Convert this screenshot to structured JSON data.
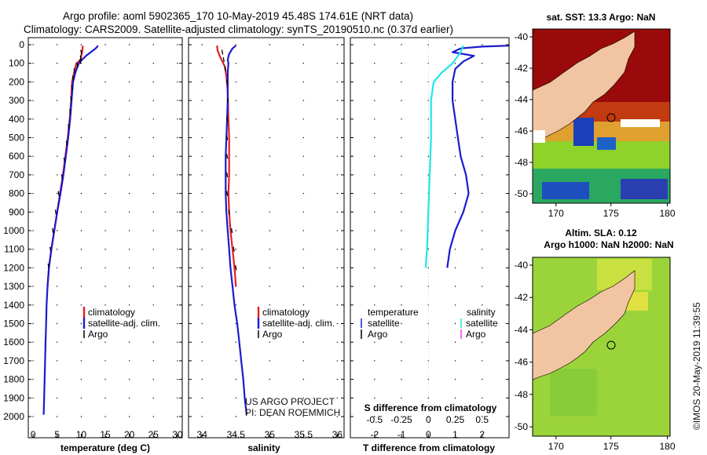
{
  "title": {
    "line1": "Argo profile: aoml 5902365_170 10-May-2019 45.48S 174.61E (NRT data)",
    "line2": "Climatology: CARS2009. Satellite-adjusted climatology: synTS_20190510.nc (0.37d earlier)"
  },
  "depth_ticks": [
    "0",
    "100",
    "200",
    "300",
    "400",
    "500",
    "600",
    "700",
    "800",
    "900",
    "1000",
    "1100",
    "1200",
    "1300",
    "1400",
    "1500",
    "1600",
    "1700",
    "1800",
    "1900",
    "2000"
  ],
  "colors": {
    "climatology": "#e02020",
    "satellite": "#1a1ad0",
    "argo": "#000000",
    "sat_salinity": "#22e6e6",
    "argo_salinity": "#ff33ff"
  },
  "chart_data": [
    {
      "type": "line",
      "id": "temperature",
      "xlabel": "temperature (deg C)",
      "ylabel": "depth (m)",
      "xlim": [
        -1,
        31
      ],
      "ylim": [
        2050,
        0
      ],
      "xticks": [
        0,
        5,
        10,
        15,
        20,
        25,
        30
      ],
      "xtick_labels": [
        "0",
        "5",
        "10",
        "15",
        "20",
        "25",
        "30"
      ],
      "legend": [
        "climatology",
        "satellite-adj. clim.",
        "Argo"
      ],
      "series": [
        {
          "name": "climatology",
          "color": "#e02020",
          "points": [
            [
              10.3,
              5
            ],
            [
              10.3,
              20
            ],
            [
              10.2,
              40
            ],
            [
              10.0,
              60
            ],
            [
              9.9,
              80
            ],
            [
              9.0,
              100
            ],
            [
              8.5,
              150
            ],
            [
              8.1,
              200
            ],
            [
              7.9,
              300
            ],
            [
              7.6,
              400
            ],
            [
              7.2,
              500
            ],
            [
              6.7,
              600
            ],
            [
              6.2,
              700
            ],
            [
              5.6,
              800
            ],
            [
              5.0,
              900
            ],
            [
              4.4,
              1000
            ],
            [
              3.8,
              1100
            ],
            [
              3.3,
              1200
            ],
            [
              3.0,
              1300
            ]
          ]
        },
        {
          "name": "satellite-adj. clim.",
          "color": "#1a1ad0",
          "points": [
            [
              13.5,
              5
            ],
            [
              13.0,
              20
            ],
            [
              12.0,
              40
            ],
            [
              11.0,
              60
            ],
            [
              10.2,
              80
            ],
            [
              9.5,
              100
            ],
            [
              8.8,
              150
            ],
            [
              8.3,
              200
            ],
            [
              8.0,
              300
            ],
            [
              7.7,
              400
            ],
            [
              7.3,
              500
            ],
            [
              6.8,
              600
            ],
            [
              6.3,
              700
            ],
            [
              5.7,
              800
            ],
            [
              5.0,
              900
            ],
            [
              4.4,
              1000
            ],
            [
              3.8,
              1100
            ],
            [
              3.3,
              1200
            ],
            [
              3.0,
              1300
            ],
            [
              2.8,
              1400
            ],
            [
              2.7,
              1500
            ],
            [
              2.6,
              1600
            ],
            [
              2.5,
              1700
            ],
            [
              2.4,
              1800
            ],
            [
              2.3,
              1900
            ],
            [
              2.2,
              1990
            ]
          ]
        },
        {
          "name": "Argo",
          "color": "#000000",
          "points": [
            [
              10.0,
              40
            ],
            [
              9.9,
              70
            ],
            [
              9.8,
              90
            ],
            [
              9.2,
              110
            ],
            [
              8.6,
              140
            ],
            [
              8.3,
              180
            ],
            [
              8.1,
              230
            ],
            [
              7.9,
              290
            ],
            [
              7.7,
              360
            ],
            [
              7.4,
              440
            ],
            [
              7.0,
              530
            ],
            [
              6.5,
              620
            ],
            [
              6.0,
              710
            ],
            [
              5.3,
              800
            ],
            [
              4.7,
              900
            ],
            [
              4.1,
              1000
            ],
            [
              3.6,
              1100
            ],
            [
              3.2,
              1190
            ]
          ]
        }
      ]
    },
    {
      "type": "line",
      "id": "salinity",
      "xlabel": "salinity",
      "ylabel": "depth (m)",
      "xlim": [
        33.8,
        36.1
      ],
      "ylim": [
        2050,
        0
      ],
      "xticks": [
        34,
        34.5,
        35,
        35.5,
        36
      ],
      "xtick_labels": [
        "34",
        "34.5",
        "35",
        "35.5",
        "36"
      ],
      "legend": [
        "climatology",
        "satellite-adj. clim.",
        "Argo"
      ],
      "series": [
        {
          "name": "climatology",
          "color": "#e02020",
          "points": [
            [
              34.22,
              5
            ],
            [
              34.23,
              30
            ],
            [
              34.26,
              60
            ],
            [
              34.3,
              90
            ],
            [
              34.34,
              120
            ],
            [
              34.36,
              170
            ],
            [
              34.38,
              250
            ],
            [
              34.39,
              400
            ],
            [
              34.4,
              500
            ],
            [
              34.4,
              600
            ],
            [
              34.4,
              700
            ],
            [
              34.39,
              800
            ],
            [
              34.4,
              900
            ],
            [
              34.42,
              1000
            ],
            [
              34.45,
              1100
            ],
            [
              34.48,
              1200
            ],
            [
              34.5,
              1300
            ]
          ]
        },
        {
          "name": "satellite-adj. clim.",
          "color": "#1a1ad0",
          "points": [
            [
              34.5,
              5
            ],
            [
              34.45,
              20
            ],
            [
              34.4,
              50
            ],
            [
              34.38,
              80
            ],
            [
              34.39,
              100
            ],
            [
              34.38,
              150
            ],
            [
              34.38,
              200
            ],
            [
              34.38,
              300
            ],
            [
              34.37,
              400
            ],
            [
              34.36,
              500
            ],
            [
              34.35,
              600
            ],
            [
              34.35,
              700
            ],
            [
              34.35,
              800
            ],
            [
              34.36,
              900
            ],
            [
              34.38,
              1000
            ],
            [
              34.4,
              1100
            ],
            [
              34.42,
              1200
            ],
            [
              34.45,
              1300
            ],
            [
              34.48,
              1400
            ],
            [
              34.52,
              1500
            ],
            [
              34.55,
              1600
            ],
            [
              34.58,
              1700
            ],
            [
              34.61,
              1800
            ],
            [
              34.63,
              1900
            ],
            [
              34.66,
              1990
            ]
          ]
        },
        {
          "name": "Argo",
          "color": "#000000",
          "points": [
            [
              34.3,
              40
            ],
            [
              34.32,
              80
            ],
            [
              34.34,
              130
            ],
            [
              34.37,
              200
            ],
            [
              34.38,
              300
            ],
            [
              34.37,
              400
            ],
            [
              34.37,
              500
            ],
            [
              34.37,
              600
            ],
            [
              34.37,
              700
            ],
            [
              34.37,
              800
            ],
            [
              34.4,
              900
            ],
            [
              34.44,
              1000
            ],
            [
              34.47,
              1100
            ],
            [
              34.5,
              1200
            ]
          ]
        }
      ]
    },
    {
      "type": "line",
      "id": "difference",
      "xlabel": "T difference from climatology",
      "xlabel_top": "S difference from climatology",
      "ylabel": "depth (m)",
      "xlim": [
        -2.9,
        3.0
      ],
      "ylim": [
        2050,
        0
      ],
      "xticks": [
        -2,
        -1,
        0,
        1,
        2
      ],
      "xtick_labels": [
        "-2",
        "-1",
        "0",
        "1",
        "2"
      ],
      "s_xticks": [
        -2,
        -1,
        0,
        1,
        2
      ],
      "s_xtick_labels": [
        "-0.5",
        "-0.25",
        "0",
        "0.25",
        "0.5"
      ],
      "legend_temperature": {
        "title": "temperature",
        "items": [
          "satellite",
          "Argo"
        ]
      },
      "legend_salinity": {
        "title": "salinity",
        "items": [
          "satellite",
          "Argo"
        ]
      },
      "series": [
        {
          "name": "T satellite",
          "color": "#1a1ad0",
          "points": [
            [
              3.0,
              5
            ],
            [
              2.0,
              10
            ],
            [
              1.2,
              20
            ],
            [
              0.9,
              40
            ],
            [
              1.7,
              60
            ],
            [
              1.3,
              90
            ],
            [
              1.0,
              130
            ],
            [
              0.9,
              200
            ],
            [
              0.9,
              300
            ],
            [
              1.0,
              400
            ],
            [
              1.1,
              500
            ],
            [
              1.2,
              600
            ],
            [
              1.4,
              700
            ],
            [
              1.5,
              800
            ],
            [
              1.3,
              900
            ],
            [
              1.0,
              1000
            ],
            [
              0.8,
              1100
            ],
            [
              0.7,
              1200
            ]
          ]
        },
        {
          "name": "S satellite",
          "color": "#22e6e6",
          "points": [
            [
              1.3,
              5
            ],
            [
              1.2,
              40
            ],
            [
              1.0,
              80
            ],
            [
              0.9,
              100
            ],
            [
              0.5,
              150
            ],
            [
              0.2,
              200
            ],
            [
              0.1,
              300
            ],
            [
              0.1,
              500
            ],
            [
              0.05,
              700
            ],
            [
              0.0,
              900
            ],
            [
              -0.05,
              1100
            ],
            [
              -0.1,
              1200
            ]
          ]
        }
      ]
    }
  ],
  "maps": [
    {
      "id": "sst-map",
      "title": "sat. SST: 13.3 Argo: NaN",
      "yticks": [
        "-40",
        "-42",
        "-44",
        "-46",
        "-48",
        "-50"
      ],
      "xticks": [
        "170",
        "175",
        "180"
      ]
    },
    {
      "id": "sla-map",
      "title_line1": "Altim. SLA: 0.12",
      "title_line2": "Argo h1000: NaN h2000: NaN",
      "yticks": [
        "-40",
        "-42",
        "-44",
        "-46",
        "-48",
        "-50"
      ],
      "xticks": [
        "170",
        "175",
        "180"
      ]
    }
  ],
  "credit": {
    "line1": "US ARGO PROJECT",
    "line2": "PI: DEAN ROEMMICH"
  },
  "stamp": "©IMOS 20-May-2019 11:39:55"
}
